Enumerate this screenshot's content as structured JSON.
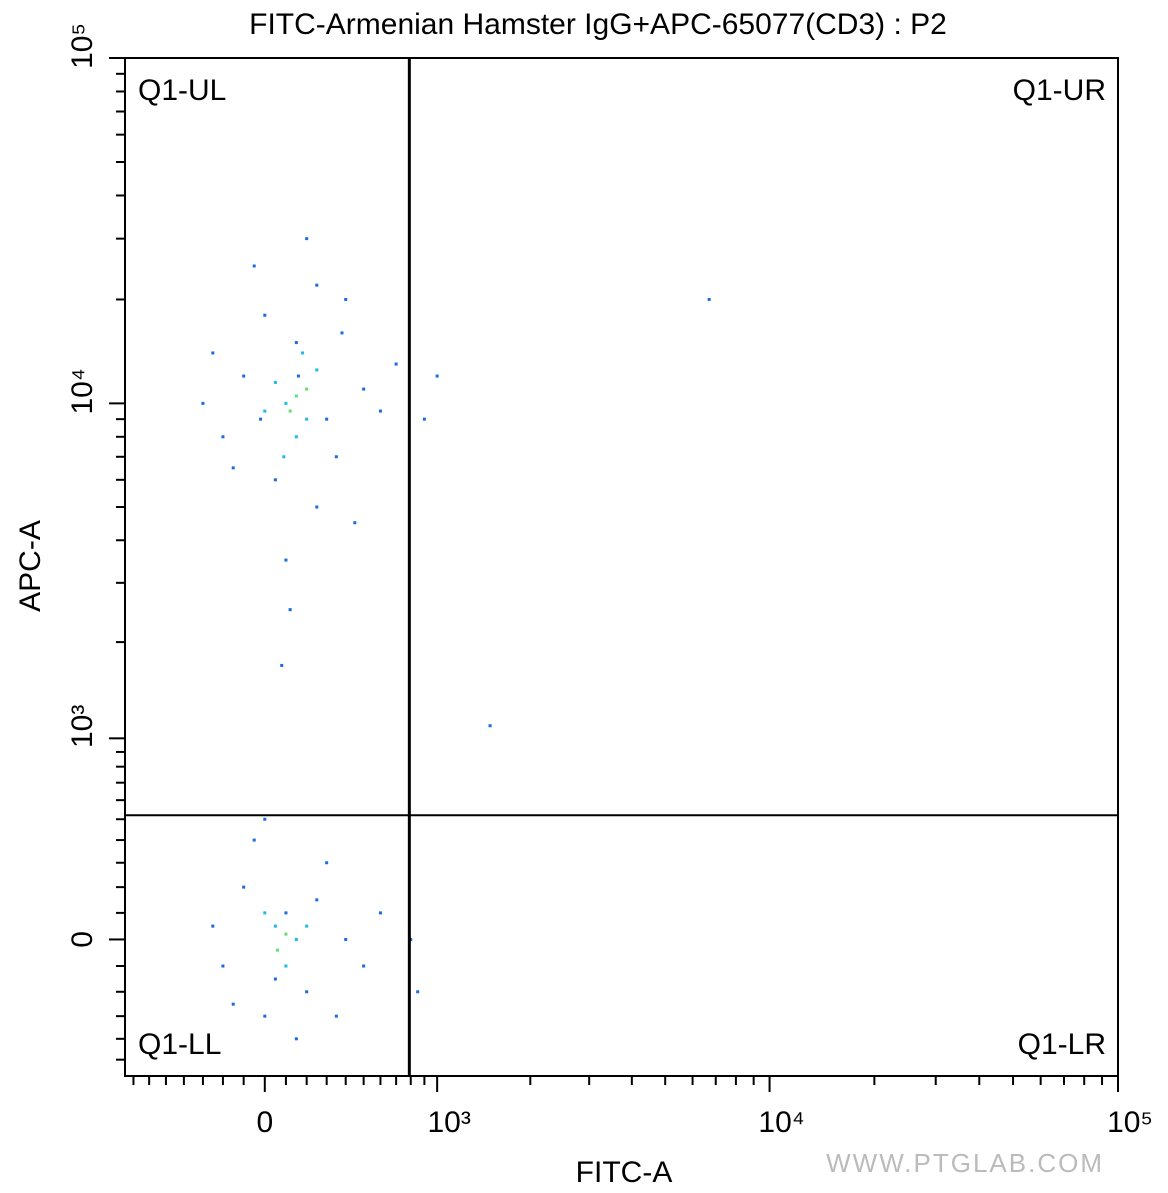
{
  "chart_data": {
    "type": "scatter",
    "title": "FITC-Armenian Hamster IgG+APC-65077(CD3) : P2",
    "x_label": "FITC-A",
    "y_label": "APC-A",
    "scale": "biexponential",
    "xlim": [
      -757,
      100000
    ],
    "ylim": [
      -585,
      100000
    ],
    "xticks": [
      0,
      {
        "value": 1000,
        "label": "10³"
      },
      {
        "value": 10000,
        "label": "10⁴"
      },
      {
        "value": 100000,
        "label": "10⁵"
      }
    ],
    "yticks": [
      0,
      {
        "value": 1000,
        "label": "10³"
      },
      {
        "value": 10000,
        "label": "10⁴"
      },
      {
        "value": 100000,
        "label": "10⁵"
      }
    ],
    "xminorticks": [
      -700,
      -600,
      -500,
      -400,
      -300,
      -200,
      -100,
      100,
      200,
      300,
      400,
      500,
      600,
      700,
      800,
      900,
      2000,
      3000,
      4000,
      5000,
      6000,
      7000,
      8000,
      9000,
      20000,
      30000,
      40000,
      50000,
      60000,
      70000,
      80000,
      90000
    ],
    "yminorticks": [
      -500,
      -400,
      -300,
      -200,
      -100,
      100,
      200,
      300,
      400,
      500,
      600,
      700,
      800,
      900,
      2000,
      3000,
      4000,
      5000,
      6000,
      7000,
      8000,
      9000,
      20000,
      30000,
      40000,
      50000,
      60000,
      70000,
      80000,
      90000
    ],
    "gate": {
      "x": 790,
      "y": 520
    },
    "quadrants": [
      "Q1-UL",
      "Q1-UR",
      "Q1-LL",
      "Q1-LR"
    ],
    "watermark": "WWW.PTGLAB.COM",
    "series": [
      {
        "color": "#1a6be0",
        "x": [
          -200,
          -100,
          50,
          150,
          300,
          400,
          -50,
          250,
          500,
          100,
          -250,
          350,
          600,
          0,
          200,
          450,
          -150,
          120,
          80,
          700,
          -300,
          250,
          -20,
          380,
          160,
          1500,
          6700,
          1000,
          900,
          -200,
          -100,
          0,
          100,
          200,
          300,
          400,
          -50,
          150,
          250,
          -250,
          500,
          50,
          350,
          -150,
          0,
          600,
          850,
          800
        ],
        "values": [
          8000,
          12000,
          6000,
          15000,
          9000,
          20000,
          25000,
          5000,
          11000,
          3500,
          14000,
          7000,
          9500,
          18000,
          30000,
          4500,
          6500,
          2500,
          1700,
          13000,
          10000,
          22000,
          9000,
          16000,
          12000,
          1100,
          20000,
          12000,
          9000,
          -100,
          200,
          -300,
          100,
          -200,
          300,
          0,
          400,
          -400,
          150,
          50,
          -100,
          -150,
          -300,
          -250,
          500,
          100,
          -200,
          0
        ]
      },
      {
        "color": "#20b8e8",
        "x": [
          100,
          200,
          50,
          150,
          250,
          0,
          180,
          90,
          50,
          150,
          0,
          100,
          200
        ],
        "values": [
          10000,
          9000,
          11500,
          8000,
          12500,
          9500,
          14000,
          7000,
          50,
          0,
          100,
          -100,
          50
        ]
      },
      {
        "color": "#5fe07a",
        "x": [
          150,
          120,
          200,
          100,
          60
        ],
        "values": [
          10500,
          9500,
          11000,
          20,
          -40
        ]
      }
    ]
  }
}
